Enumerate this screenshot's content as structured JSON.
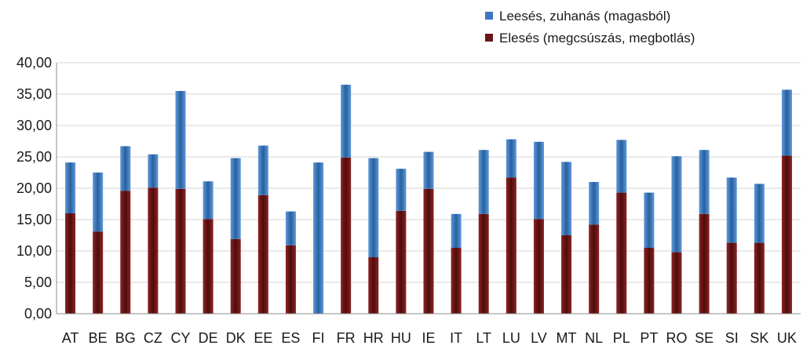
{
  "chart_data": {
    "type": "bar",
    "stacked": true,
    "categories": [
      "AT",
      "BE",
      "BG",
      "CZ",
      "CY",
      "DE",
      "DK",
      "EE",
      "ES",
      "FI",
      "FR",
      "HR",
      "HU",
      "IE",
      "IT",
      "LT",
      "LU",
      "LV",
      "MT",
      "NL",
      "PL",
      "PT",
      "RO",
      "SE",
      "SI",
      "SK",
      "UK"
    ],
    "series": [
      {
        "name": "Elesés (megcsúszás, megbotlás)",
        "color": "#6b1515",
        "values": [
          16.0,
          13.1,
          19.6,
          20.1,
          19.9,
          15.1,
          11.9,
          18.9,
          10.9,
          0.0,
          24.9,
          9.0,
          16.4,
          19.9,
          10.5,
          15.9,
          21.7,
          15.1,
          12.5,
          14.2,
          19.3,
          10.5,
          9.8,
          15.9,
          11.3,
          11.3,
          25.2
        ]
      },
      {
        "name": "Leesés, zuhanás (magasból)",
        "color": "#3d78c1",
        "values": [
          8.1,
          9.4,
          7.1,
          5.3,
          15.6,
          6.0,
          12.9,
          7.9,
          5.4,
          24.1,
          11.6,
          15.8,
          6.7,
          5.9,
          5.4,
          10.2,
          6.1,
          12.3,
          11.7,
          6.8,
          8.4,
          8.8,
          15.3,
          10.2,
          10.4,
          9.4,
          10.5
        ]
      }
    ],
    "ylim": [
      0,
      40
    ],
    "yticks": [
      "0,00",
      "5,00",
      "10,00",
      "15,00",
      "20,00",
      "25,00",
      "30,00",
      "35,00",
      "40,00"
    ],
    "grid": true,
    "legend_position": "top-right"
  }
}
